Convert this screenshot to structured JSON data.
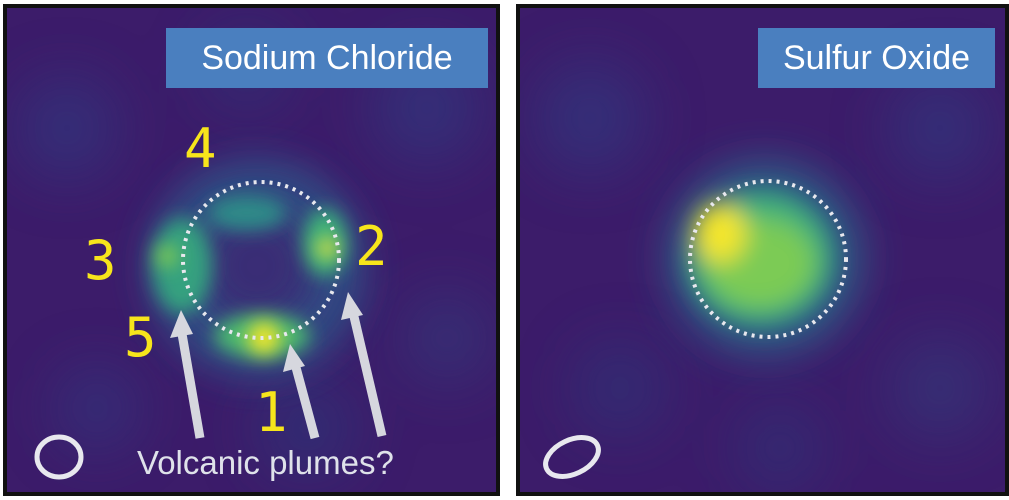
{
  "panels": [
    {
      "label": "Sodium Chloride",
      "markers": [
        "1",
        "2",
        "3",
        "4",
        "5"
      ],
      "caption": "Volcanic plumes?"
    },
    {
      "label": "Sulfur Oxide"
    }
  ],
  "colors": {
    "background": "#3c1c6a",
    "emission_low": "#2b6f8e",
    "emission_mid": "#3aaa7e",
    "emission_high": "#f4e62a",
    "label_bg": "#4a7fbf",
    "marker_text": "#f7e51b",
    "arrow": "#d6d7de"
  }
}
